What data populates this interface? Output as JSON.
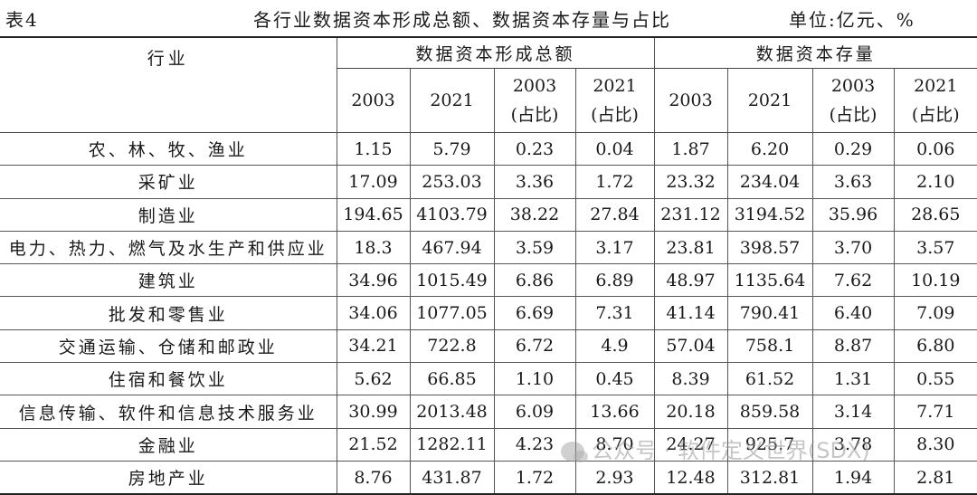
{
  "table_label": "表4",
  "title": "各行业数据资本形成总额、数据资本存量与占比",
  "unit": "单位:亿元、%",
  "headers": {
    "industry": "行业",
    "group1": "数据资本形成总额",
    "group2": "数据资本存量",
    "year_2003": "2003",
    "year_2021": "2021",
    "share_suffix": "(占比)"
  },
  "rows": [
    {
      "industry": "农、林、牧、渔业",
      "v": [
        "1.15",
        "5.79",
        "0.23",
        "0.04",
        "1.87",
        "6.20",
        "0.29",
        "0.06"
      ]
    },
    {
      "industry": "采矿业",
      "v": [
        "17.09",
        "253.03",
        "3.36",
        "1.72",
        "23.32",
        "234.04",
        "3.63",
        "2.10"
      ]
    },
    {
      "industry": "制造业",
      "v": [
        "194.65",
        "4103.79",
        "38.22",
        "27.84",
        "231.12",
        "3194.52",
        "35.96",
        "28.65"
      ]
    },
    {
      "industry": "电力、热力、燃气及水生产和供应业",
      "v": [
        "18.3",
        "467.94",
        "3.59",
        "3.17",
        "23.81",
        "398.57",
        "3.70",
        "3.57"
      ]
    },
    {
      "industry": "建筑业",
      "v": [
        "34.96",
        "1015.49",
        "6.86",
        "6.89",
        "48.97",
        "1135.64",
        "7.62",
        "10.19"
      ]
    },
    {
      "industry": "批发和零售业",
      "v": [
        "34.06",
        "1077.05",
        "6.69",
        "7.31",
        "41.14",
        "790.41",
        "6.40",
        "7.09"
      ]
    },
    {
      "industry": "交通运输、仓储和邮政业",
      "v": [
        "34.21",
        "722.8",
        "6.72",
        "4.9",
        "57.04",
        "758.1",
        "8.87",
        "6.80"
      ]
    },
    {
      "industry": "住宿和餐饮业",
      "v": [
        "5.62",
        "66.85",
        "1.10",
        "0.45",
        "8.39",
        "61.52",
        "1.31",
        "0.55"
      ]
    },
    {
      "industry": "信息传输、软件和信息技术服务业",
      "v": [
        "30.99",
        "2013.48",
        "6.09",
        "13.66",
        "20.18",
        "859.58",
        "3.14",
        "7.71"
      ]
    },
    {
      "industry": "金融业",
      "v": [
        "21.52",
        "1282.11",
        "4.23",
        "8.70",
        "24.27",
        "925.7",
        "3.78",
        "8.30"
      ]
    },
    {
      "industry": "房地产业",
      "v": [
        "8.76",
        "431.87",
        "1.72",
        "2.93",
        "12.48",
        "312.81",
        "1.94",
        "2.81"
      ]
    }
  ],
  "watermark": "公众号 · 软件定义世界(SDX)"
}
